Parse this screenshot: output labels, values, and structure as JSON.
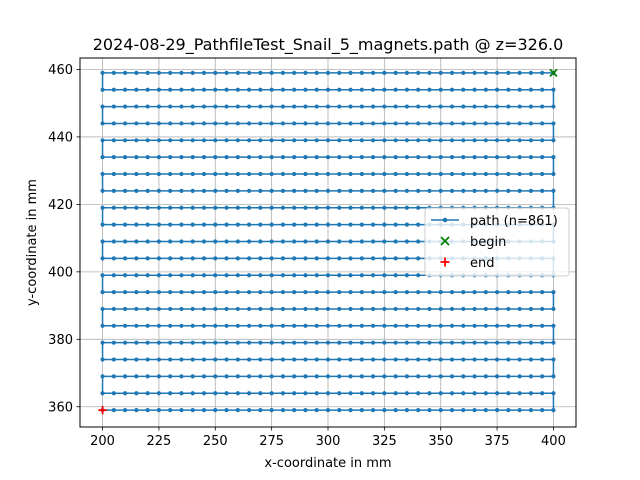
{
  "chart_data": {
    "type": "line",
    "title": "2024-08-29_PathfileTest_Snail_5_magnets.path @ z=326.0",
    "xlabel": "x-coordinate in mm",
    "ylabel": "y-coordinate in mm",
    "xlim": [
      190,
      410
    ],
    "ylim": [
      354,
      463.4
    ],
    "xticks": [
      200,
      225,
      250,
      275,
      300,
      325,
      350,
      375,
      400
    ],
    "yticks": [
      360,
      380,
      400,
      420,
      440,
      460
    ],
    "grid": true,
    "legend_position": "center-right",
    "colors": {
      "path": "#1f77b4",
      "begin": "#008000",
      "end": "#ff0000",
      "grid": "#b0b0b0"
    },
    "series": [
      {
        "name": "path (n=861)",
        "kind": "line-with-markers",
        "description": "snake raster: 21 horizontal rows from y=459 down to y=359, step 5 mm; x sampled 200..400 every 5 mm",
        "x_start": 200,
        "x_end": 400,
        "x_step": 5,
        "y_rows": [
          459,
          454,
          449,
          444,
          439,
          434,
          429,
          424,
          419,
          414,
          409,
          404,
          399,
          394,
          389,
          384,
          379,
          374,
          369,
          364,
          359
        ],
        "first_row_direction": "right-to-left"
      },
      {
        "name": "begin",
        "kind": "marker-x",
        "points": [
          [
            400,
            459
          ]
        ]
      },
      {
        "name": "end",
        "kind": "marker-plus",
        "points": [
          [
            200,
            359
          ]
        ]
      }
    ],
    "legend": [
      {
        "label": "path (n=861)",
        "symbol": "line-marker"
      },
      {
        "label": "begin",
        "symbol": "x"
      },
      {
        "label": "end",
        "symbol": "plus"
      }
    ]
  }
}
